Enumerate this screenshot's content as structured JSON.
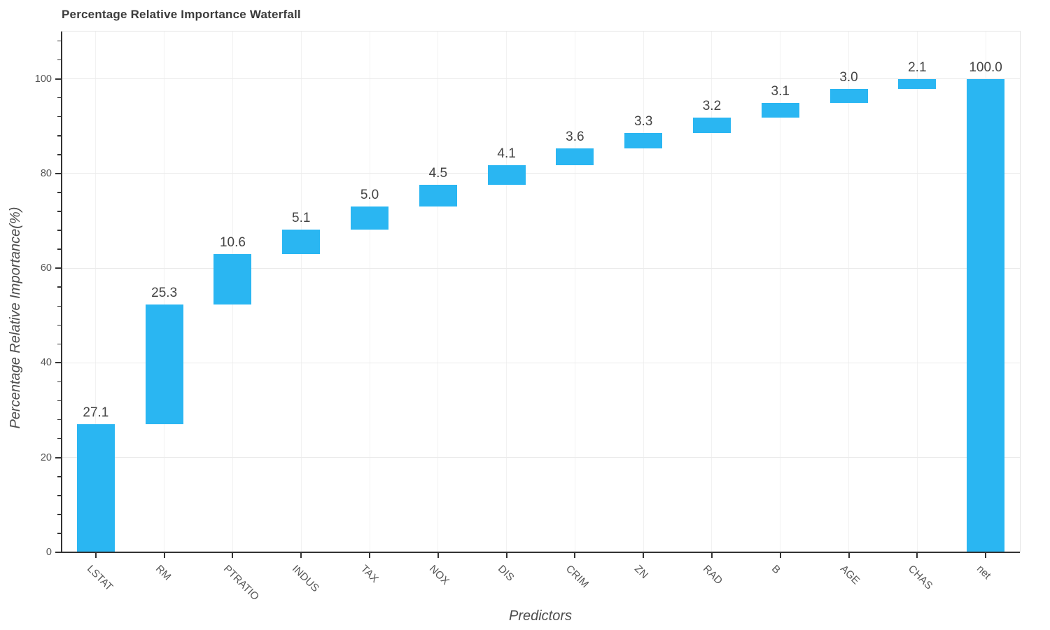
{
  "chart_data": {
    "type": "bar",
    "subtype": "waterfall",
    "title": "Percentage Relative Importance Waterfall",
    "xlabel": "Predictors",
    "ylabel": "Percentage Relative Importance(%)",
    "categories": [
      "LSTAT",
      "RM",
      "PTRATIO",
      "INDUS",
      "TAX",
      "NOX",
      "DIS",
      "CRIM",
      "ZN",
      "RAD",
      "B",
      "AGE",
      "CHAS",
      "net"
    ],
    "values": [
      27.1,
      25.3,
      10.6,
      5.1,
      5.0,
      4.5,
      4.1,
      3.6,
      3.3,
      3.2,
      3.1,
      3.0,
      2.1,
      100.0
    ],
    "measures": [
      "relative",
      "relative",
      "relative",
      "relative",
      "relative",
      "relative",
      "relative",
      "relative",
      "relative",
      "relative",
      "relative",
      "relative",
      "relative",
      "total"
    ],
    "bar_labels": [
      "27.1",
      "25.3",
      "10.6",
      "5.1",
      "5.0",
      "4.5",
      "4.1",
      "3.6",
      "3.3",
      "3.2",
      "3.1",
      "3.0",
      "2.1",
      "100.0"
    ],
    "cumulative_end": [
      27.1,
      52.4,
      63.0,
      68.1,
      73.1,
      77.6,
      81.7,
      85.3,
      88.6,
      91.8,
      94.9,
      97.9,
      100.0,
      100.0
    ],
    "ylim": [
      0,
      110
    ],
    "yticks": [
      0,
      20,
      40,
      60,
      80,
      100
    ],
    "ytick_labels": [
      "0",
      "20",
      "40",
      "60",
      "80",
      "100"
    ],
    "minor_tick_step": 4,
    "grid": true,
    "legend": false,
    "x_label_rotation_deg": 45,
    "colors": {
      "bar": "#2ab6f2",
      "grid_h": "#ebebeb",
      "grid_v": "#f2f2f2",
      "frame": "#e5e5e5",
      "axis": "#333333",
      "title": "#3b3b3b",
      "value_label": "#444444",
      "tick_label": "#555555",
      "axis_title": "#4d4d4d",
      "background": "#ffffff"
    }
  }
}
